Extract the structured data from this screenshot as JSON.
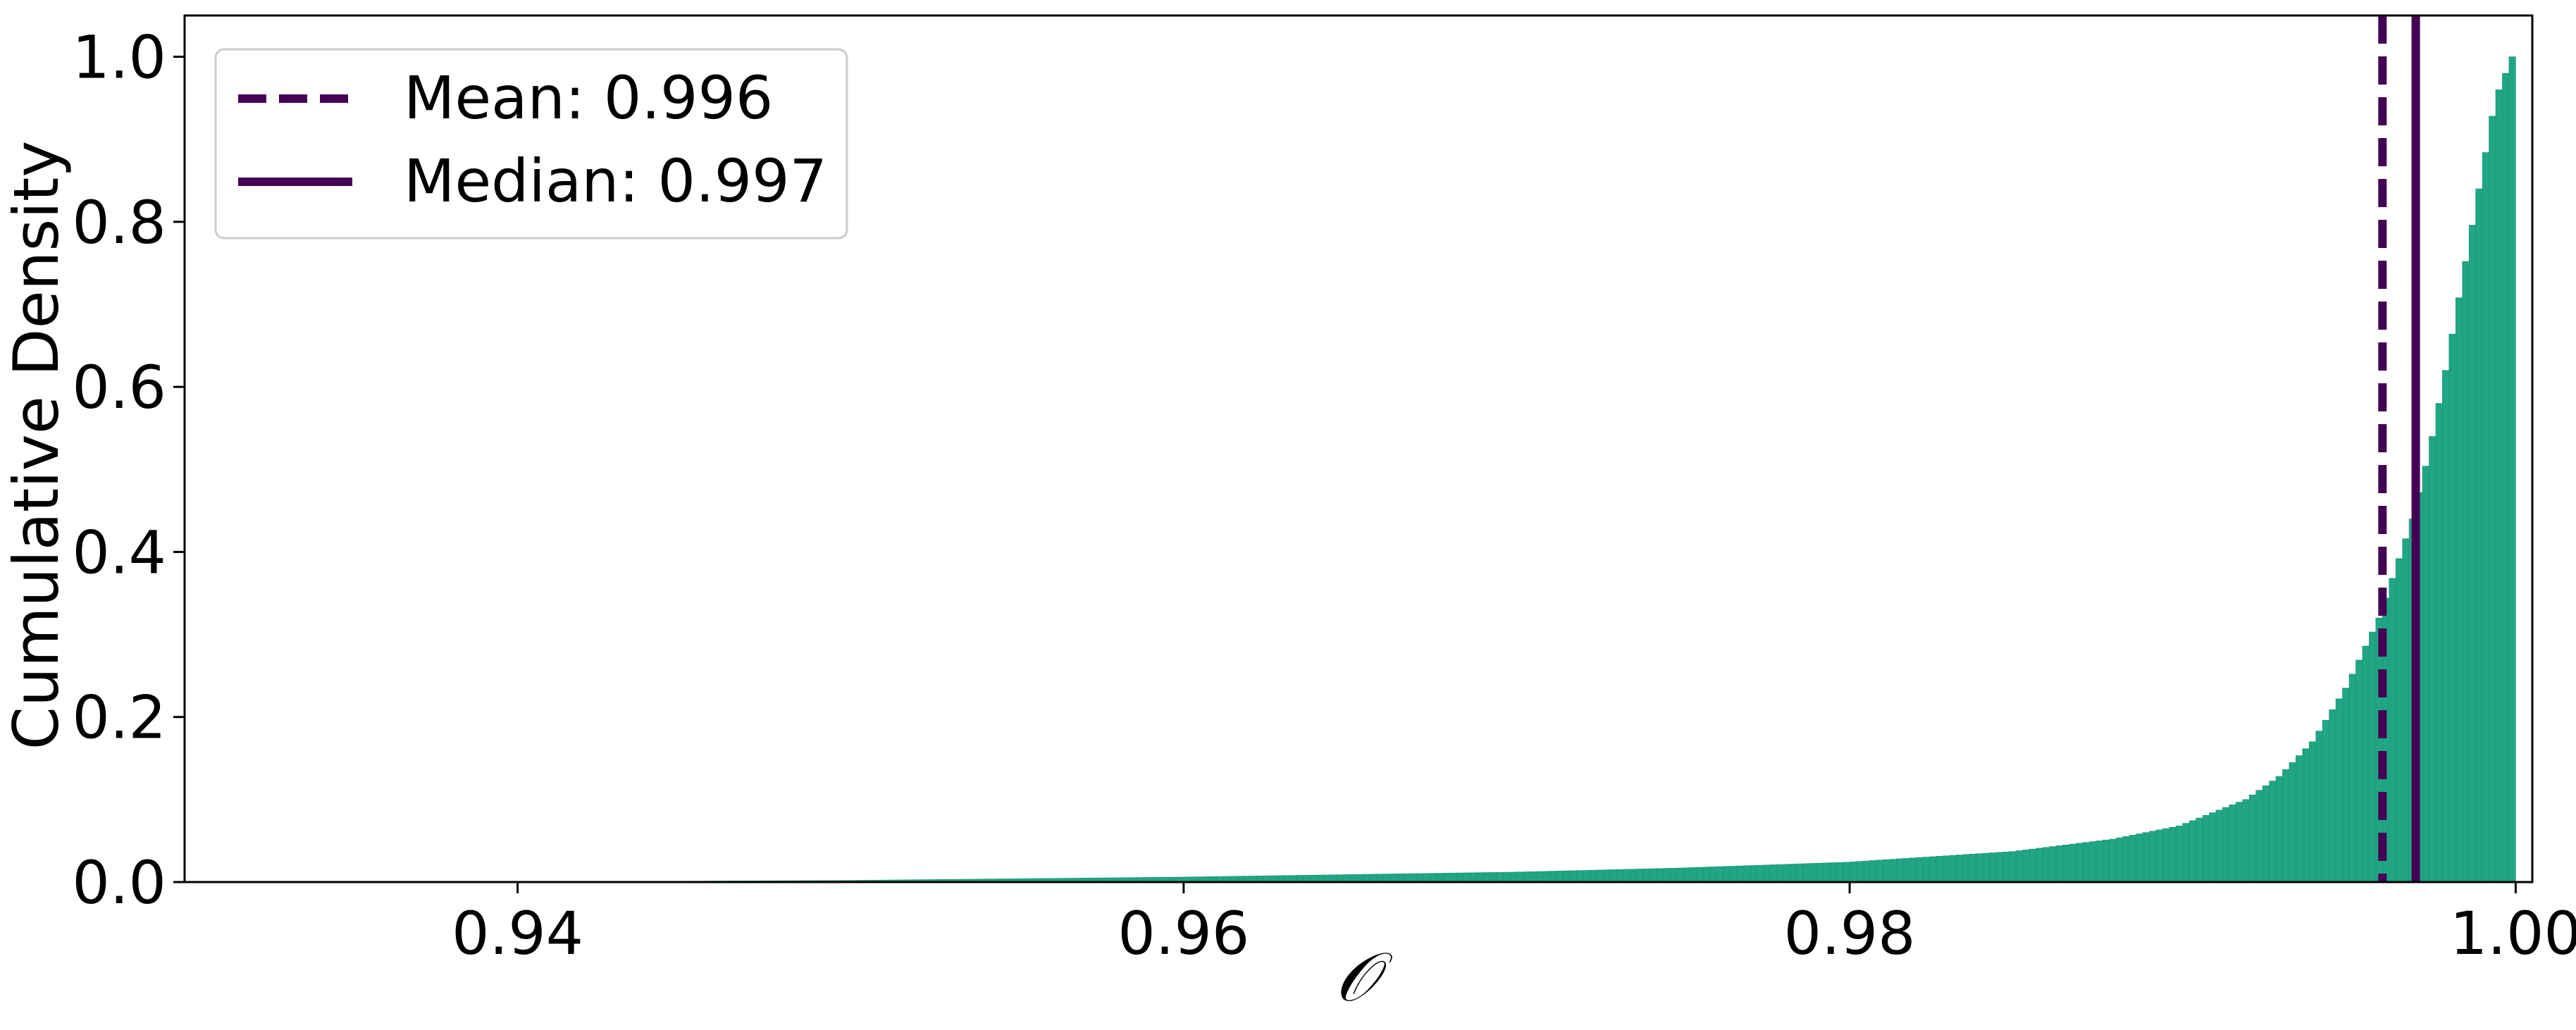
{
  "chart_data": {
    "type": "bar",
    "title": "",
    "xlabel": "𝒪",
    "ylabel": "Cumulative Density",
    "xlim": [
      0.93,
      1.0005
    ],
    "ylim": [
      0.0,
      1.05
    ],
    "xticks": [
      0.94,
      0.96,
      0.98,
      1.0
    ],
    "xtick_labels": [
      "0.94",
      "0.96",
      "0.98",
      "1.00"
    ],
    "yticks": [
      0.0,
      0.2,
      0.4,
      0.6,
      0.8,
      1.0
    ],
    "ytick_labels": [
      "0.0",
      "0.2",
      "0.4",
      "0.6",
      "0.8",
      "1.0"
    ],
    "grid": false,
    "legend_position": "top-left",
    "bar_color": "#21a685",
    "line_color": "#440154",
    "bin_width": 0.0002,
    "cdf_points": [
      {
        "x": 0.94,
        "y": 0.0
      },
      {
        "x": 0.95,
        "y": 0.002
      },
      {
        "x": 0.96,
        "y": 0.006
      },
      {
        "x": 0.97,
        "y": 0.012
      },
      {
        "x": 0.975,
        "y": 0.017
      },
      {
        "x": 0.98,
        "y": 0.024
      },
      {
        "x": 0.985,
        "y": 0.037
      },
      {
        "x": 0.988,
        "y": 0.052
      },
      {
        "x": 0.99,
        "y": 0.068
      },
      {
        "x": 0.992,
        "y": 0.1
      },
      {
        "x": 0.993,
        "y": 0.128
      },
      {
        "x": 0.994,
        "y": 0.17
      },
      {
        "x": 0.995,
        "y": 0.235
      },
      {
        "x": 0.996,
        "y": 0.32
      },
      {
        "x": 0.997,
        "y": 0.44
      },
      {
        "x": 0.9975,
        "y": 0.52
      },
      {
        "x": 0.998,
        "y": 0.62
      },
      {
        "x": 0.9985,
        "y": 0.73
      },
      {
        "x": 0.999,
        "y": 0.84
      },
      {
        "x": 0.9995,
        "y": 0.95
      },
      {
        "x": 1.0,
        "y": 1.0
      }
    ],
    "vlines": [
      {
        "name": "Mean: 0.996",
        "x": 0.996,
        "style": "dashed"
      },
      {
        "name": "Median: 0.997",
        "x": 0.997,
        "style": "solid"
      }
    ]
  }
}
